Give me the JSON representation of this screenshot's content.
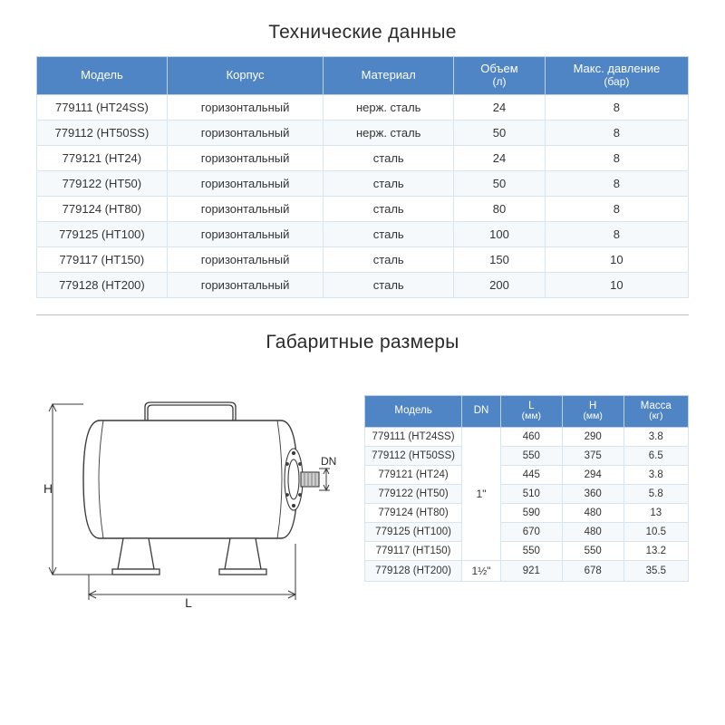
{
  "section1": {
    "title": "Технические данные",
    "columns": [
      {
        "label": "Модель",
        "sub": ""
      },
      {
        "label": "Корпус",
        "sub": ""
      },
      {
        "label": "Материал",
        "sub": ""
      },
      {
        "label": "Объем",
        "sub": "(л)"
      },
      {
        "label": "Макс. давление",
        "sub": "(бар)"
      }
    ],
    "rows": [
      [
        "779111 (HT24SS)",
        "горизонтальный",
        "нерж. сталь",
        "24",
        "8"
      ],
      [
        "779112 (HT50SS)",
        "горизонтальный",
        "нерж. сталь",
        "50",
        "8"
      ],
      [
        "779121 (HT24)",
        "горизонтальный",
        "сталь",
        "24",
        "8"
      ],
      [
        "779122 (HT50)",
        "горизонтальный",
        "сталь",
        "50",
        "8"
      ],
      [
        "779124 (HT80)",
        "горизонтальный",
        "сталь",
        "80",
        "8"
      ],
      [
        "779125 (HT100)",
        "горизонтальный",
        "сталь",
        "100",
        "8"
      ],
      [
        "779117 (HT150)",
        "горизонтальный",
        "сталь",
        "150",
        "10"
      ],
      [
        "779128 (HT200)",
        "горизонтальный",
        "сталь",
        "200",
        "10"
      ]
    ],
    "header_bg": "#4f85c4",
    "header_fg": "#ffffff",
    "border_color": "#d8e4ef",
    "row_alt_bg": "#f6f9fc",
    "font_size": 13
  },
  "section2": {
    "title": "Габаритные размеры",
    "columns": [
      {
        "label": "Модель",
        "sub": ""
      },
      {
        "label": "DN",
        "sub": ""
      },
      {
        "label": "L",
        "sub": "(мм)"
      },
      {
        "label": "H",
        "sub": "(мм)"
      },
      {
        "label": "Масса",
        "sub": "(кг)"
      }
    ],
    "dn_group_top": {
      "span": 7,
      "label": "1\""
    },
    "dn_group_bottom": {
      "span": 1,
      "label": "1½\""
    },
    "rows": [
      {
        "model": "779111 (HT24SS)",
        "L": "460",
        "H": "290",
        "mass": "3.8"
      },
      {
        "model": "779112 (HT50SS)",
        "L": "550",
        "H": "375",
        "mass": "6.5"
      },
      {
        "model": "779121 (HT24)",
        "L": "445",
        "H": "294",
        "mass": "3.8"
      },
      {
        "model": "779122 (HT50)",
        "L": "510",
        "H": "360",
        "mass": "5.8"
      },
      {
        "model": "779124 (HT80)",
        "L": "590",
        "H": "480",
        "mass": "13"
      },
      {
        "model": "779125 (HT100)",
        "L": "670",
        "H": "480",
        "mass": "10.5"
      },
      {
        "model": "779117 (HT150)",
        "L": "550",
        "H": "550",
        "mass": "13.2"
      },
      {
        "model": "779128 (HT200)",
        "L": "921",
        "H": "678",
        "mass": "35.5"
      }
    ],
    "header_bg": "#4f85c4",
    "header_fg": "#ffffff",
    "border_color": "#d8e4ef",
    "row_alt_bg": "#f6f9fc",
    "font_size": 11.5
  },
  "diagram": {
    "labels": {
      "H": "H",
      "L": "L",
      "DN": "DN"
    },
    "stroke": "#3a3a3a",
    "stroke_thin": "#555555",
    "fill_bg": "#ffffff",
    "body_width": 220,
    "body_height": 130,
    "font_size": 14
  },
  "theme": {
    "page_bg": "#ffffff",
    "title_color": "#2a2a2a",
    "title_fontsize": 21,
    "divider_color": "#bfbfbf",
    "font_family": "Arial"
  }
}
